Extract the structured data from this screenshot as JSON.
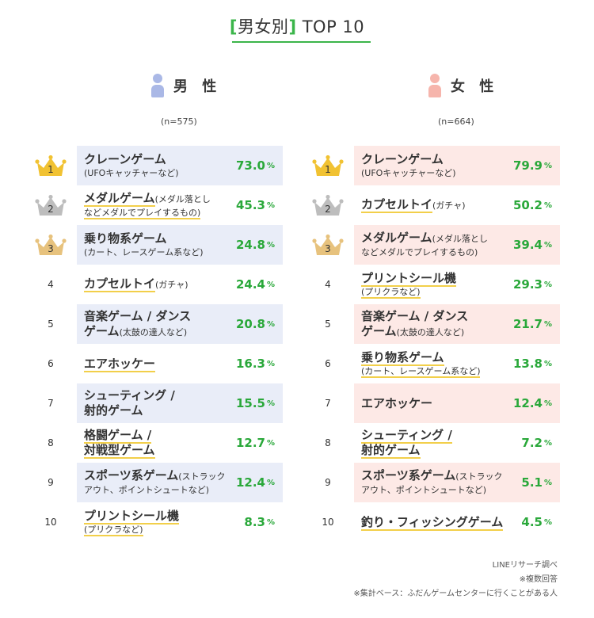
{
  "title": {
    "open": "[",
    "text": "男女別",
    "close": "]",
    "suffix": "TOP 10"
  },
  "colors": {
    "accent": "#3bb54a",
    "percent": "#2aa83a",
    "male_bg": "#e9edf8",
    "female_bg": "#fde9e6",
    "male_icon": "#aab8e6",
    "female_icon": "#f6b5ac",
    "gold": "#f1c232",
    "silver": "#bdbdbd",
    "bronze": "#e7c27d",
    "underline": "#f2cf4a"
  },
  "chart_data": [
    {
      "type": "table",
      "series_label": "男 性",
      "n": "(n=575)",
      "unit": "%",
      "rows": [
        {
          "rank": "1",
          "name": "クレーンゲーム",
          "inline": "",
          "sub": "(UFOキャッチャーなど)",
          "value": 73.0,
          "value_text": "73.0"
        },
        {
          "rank": "2",
          "name": "メダルゲーム",
          "inline": "(メダル落とし",
          "sub": "などメダルでプレイするもの)",
          "value": 45.3,
          "value_text": "45.3"
        },
        {
          "rank": "3",
          "name": "乗り物系ゲーム",
          "inline": "",
          "sub": "(カート、レースゲーム系など)",
          "value": 24.8,
          "value_text": "24.8"
        },
        {
          "rank": "4",
          "name": "カプセルトイ",
          "inline": "(ガチャ)",
          "sub": "",
          "value": 24.4,
          "value_text": "24.4"
        },
        {
          "rank": "5",
          "name": "音楽ゲーム / ダンス",
          "inline": "",
          "sub2": "ゲーム",
          "sub2_inline": "(太鼓の達人など)",
          "value": 20.8,
          "value_text": "20.8"
        },
        {
          "rank": "6",
          "name": "エアホッケー",
          "inline": "",
          "sub": "",
          "value": 16.3,
          "value_text": "16.3"
        },
        {
          "rank": "7",
          "name": "シューティング /",
          "inline": "",
          "sub2": "射的ゲーム",
          "sub2_inline": "",
          "value": 15.5,
          "value_text": "15.5"
        },
        {
          "rank": "8",
          "name": "格闘ゲーム /",
          "inline": "",
          "sub2": "対戦型ゲーム",
          "sub2_inline": "",
          "value": 12.7,
          "value_text": "12.7"
        },
        {
          "rank": "9",
          "name": "スポーツ系ゲーム",
          "inline": "(ストラック",
          "sub": "アウト、ポイントシュートなど)",
          "value": 12.4,
          "value_text": "12.4"
        },
        {
          "rank": "10",
          "name": "プリントシール機",
          "inline": "",
          "sub": "(プリクラなど)",
          "value": 8.3,
          "value_text": "8.3"
        }
      ]
    },
    {
      "type": "table",
      "series_label": "女 性",
      "n": "(n=664)",
      "unit": "%",
      "rows": [
        {
          "rank": "1",
          "name": "クレーンゲーム",
          "inline": "",
          "sub": "(UFOキャッチャーなど)",
          "value": 79.9,
          "value_text": "79.9"
        },
        {
          "rank": "2",
          "name": "カプセルトイ",
          "inline": "(ガチャ)",
          "sub": "",
          "value": 50.2,
          "value_text": "50.2"
        },
        {
          "rank": "3",
          "name": "メダルゲーム",
          "inline": "(メダル落とし",
          "sub": "などメダルでプレイするもの)",
          "value": 39.4,
          "value_text": "39.4"
        },
        {
          "rank": "4",
          "name": "プリントシール機",
          "inline": "",
          "sub": "(プリクラなど)",
          "value": 29.3,
          "value_text": "29.3"
        },
        {
          "rank": "5",
          "name": "音楽ゲーム / ダンス",
          "inline": "",
          "sub2": "ゲーム",
          "sub2_inline": "(太鼓の達人など)",
          "value": 21.7,
          "value_text": "21.7"
        },
        {
          "rank": "6",
          "name": "乗り物系ゲーム",
          "inline": "",
          "sub": "(カート、レースゲーム系など)",
          "value": 13.8,
          "value_text": "13.8"
        },
        {
          "rank": "7",
          "name": "エアホッケー",
          "inline": "",
          "sub": "",
          "value": 12.4,
          "value_text": "12.4"
        },
        {
          "rank": "8",
          "name": "シューティング /",
          "inline": "",
          "sub2": "射的ゲーム",
          "sub2_inline": "",
          "value": 7.2,
          "value_text": "7.2"
        },
        {
          "rank": "9",
          "name": "スポーツ系ゲーム",
          "inline": "(ストラック",
          "sub": "アウト、ポイントシュートなど)",
          "value": 5.1,
          "value_text": "5.1"
        },
        {
          "rank": "10",
          "name": "釣り・フィッシングゲーム",
          "inline": "",
          "sub": "",
          "value": 4.5,
          "value_text": "4.5"
        }
      ]
    }
  ],
  "footer": {
    "source": "LINEリサーチ調べ",
    "note1": "※複数回答",
    "note2": "※集計ベース：ふだんゲームセンターに行くことがある人"
  }
}
